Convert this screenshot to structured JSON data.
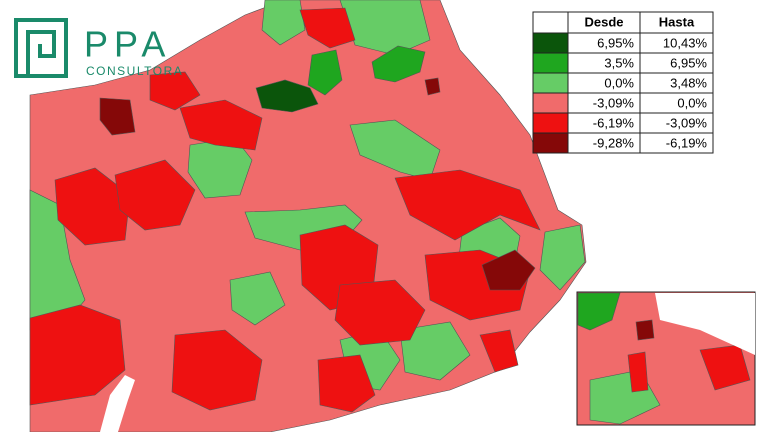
{
  "logo": {
    "title": "PPA",
    "subtitle": "CONSULTORA"
  },
  "legend": {
    "headers": [
      "Desde",
      "Hasta"
    ],
    "rows": [
      {
        "color": "#0b550b",
        "from": "6,95%",
        "to": "10,43%"
      },
      {
        "color": "#1fa61f",
        "from": "3,5%",
        "to": "6,95%"
      },
      {
        "color": "#66cc66",
        "from": "0,0%",
        "to": "3,48%"
      },
      {
        "color": "#f06b6b",
        "from": "-3,09%",
        "to": "0,0%"
      },
      {
        "color": "#ee1111",
        "from": "-6,19%",
        "to": "-3,09%"
      },
      {
        "color": "#850808",
        "from": "-9,28%",
        "to": "-6,19%"
      }
    ]
  }
}
